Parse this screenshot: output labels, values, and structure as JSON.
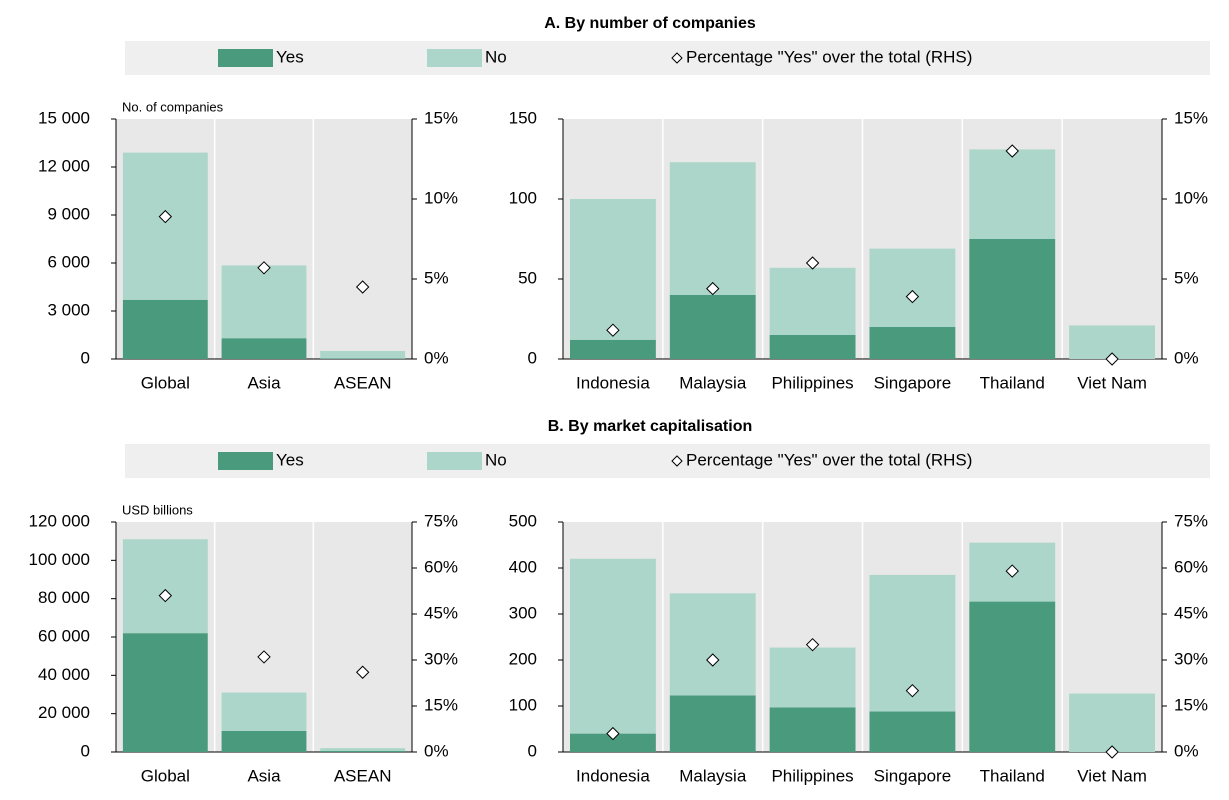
{
  "chart_data": [
    {
      "type": "bar",
      "stacked": true,
      "title": "A. By number of companies",
      "ylabel": "No. of companies",
      "categories": [
        "Global",
        "Asia",
        "ASEAN"
      ],
      "series": [
        {
          "name": "Yes",
          "color": "#4a9b7e",
          "values": [
            3700,
            1300,
            20
          ]
        },
        {
          "name": "No",
          "color": "#acd6c9",
          "values": [
            9200,
            4550,
            480
          ]
        },
        {
          "name": "Percentage \"Yes\" over the total (RHS)",
          "marker": "diamond",
          "axis": "y2",
          "values": [
            8.9,
            5.7,
            4.5
          ]
        }
      ],
      "ylim": [
        0,
        15000
      ],
      "yticks": [
        0,
        {
          "value": 3000,
          "label": "3 000"
        },
        {
          "value": 6000,
          "label": "6 000"
        },
        {
          "value": 9000,
          "label": "9 000"
        },
        {
          "value": 12000,
          "label": "12 000"
        },
        {
          "value": 15000,
          "label": "15 000"
        }
      ],
      "y2lim": [
        0,
        15
      ],
      "y2ticks": [
        {
          "value": 0,
          "label": "0%"
        },
        {
          "value": 5,
          "label": "5%"
        },
        {
          "value": 10,
          "label": "10%"
        },
        {
          "value": 15,
          "label": "15%"
        }
      ]
    },
    {
      "type": "bar",
      "stacked": true,
      "categories": [
        "Indonesia",
        "Malaysia",
        "Philippines",
        "Singapore",
        "Thailand",
        "Viet Nam"
      ],
      "series": [
        {
          "color": "#4a9b7e",
          "values": [
            12,
            40,
            15,
            20,
            75,
            0
          ]
        },
        {
          "color": "#acd6c9",
          "values": [
            88,
            83,
            42,
            49,
            56,
            21
          ]
        },
        {
          "marker": "diamond",
          "axis": "y2",
          "values": [
            1.8,
            4.4,
            6.0,
            3.9,
            13.0,
            0
          ]
        }
      ],
      "ylim": [
        0,
        150
      ],
      "yticks": [
        0,
        50,
        100,
        150
      ],
      "y2lim": [
        0,
        15
      ],
      "y2ticks": [
        {
          "value": 0,
          "label": "0%"
        },
        {
          "value": 5,
          "label": "5%"
        },
        {
          "value": 10,
          "label": "10%"
        },
        {
          "value": 15,
          "label": "15%"
        }
      ]
    },
    {
      "type": "bar",
      "stacked": true,
      "title": "B. By market capitalisation",
      "ylabel": "USD billions",
      "categories": [
        "Global",
        "Asia",
        "ASEAN"
      ],
      "series": [
        {
          "name": "Yes",
          "color": "#4a9b7e",
          "values": [
            62000,
            11000,
            600
          ]
        },
        {
          "name": "No",
          "color": "#acd6c9",
          "values": [
            49000,
            20000,
            1400
          ]
        },
        {
          "name": "Percentage \"Yes\" over the total (RHS)",
          "marker": "diamond",
          "axis": "y2",
          "values": [
            51,
            31,
            26
          ]
        }
      ],
      "ylim": [
        0,
        120000
      ],
      "yticks": [
        0,
        {
          "value": 20000,
          "label": "20 000"
        },
        {
          "value": 40000,
          "label": "40 000"
        },
        {
          "value": 60000,
          "label": "60 000"
        },
        {
          "value": 80000,
          "label": "80 000"
        },
        {
          "value": 100000,
          "label": "100 000"
        },
        {
          "value": 120000,
          "label": "120 000"
        }
      ],
      "y2lim": [
        0,
        75
      ],
      "y2ticks": [
        {
          "value": 0,
          "label": "0%"
        },
        {
          "value": 15,
          "label": "15%"
        },
        {
          "value": 30,
          "label": "30%"
        },
        {
          "value": 45,
          "label": "45%"
        },
        {
          "value": 60,
          "label": "60%"
        },
        {
          "value": 75,
          "label": "75%"
        }
      ]
    },
    {
      "type": "bar",
      "stacked": true,
      "categories": [
        "Indonesia",
        "Malaysia",
        "Philippines",
        "Singapore",
        "Thailand",
        "Viet Nam"
      ],
      "series": [
        {
          "color": "#4a9b7e",
          "values": [
            40,
            123,
            97,
            88,
            327,
            0
          ]
        },
        {
          "color": "#acd6c9",
          "values": [
            380,
            222,
            130,
            297,
            128,
            127
          ]
        },
        {
          "marker": "diamond",
          "axis": "y2",
          "values": [
            6,
            30,
            35,
            20,
            59,
            0
          ]
        }
      ],
      "ylim": [
        0,
        500
      ],
      "yticks": [
        0,
        100,
        200,
        300,
        400,
        500
      ],
      "y2lim": [
        0,
        75
      ],
      "y2ticks": [
        {
          "value": 0,
          "label": "0%"
        },
        {
          "value": 15,
          "label": "15%"
        },
        {
          "value": 30,
          "label": "30%"
        },
        {
          "value": 45,
          "label": "45%"
        },
        {
          "value": 60,
          "label": "60%"
        },
        {
          "value": 75,
          "label": "75%"
        }
      ]
    }
  ]
}
